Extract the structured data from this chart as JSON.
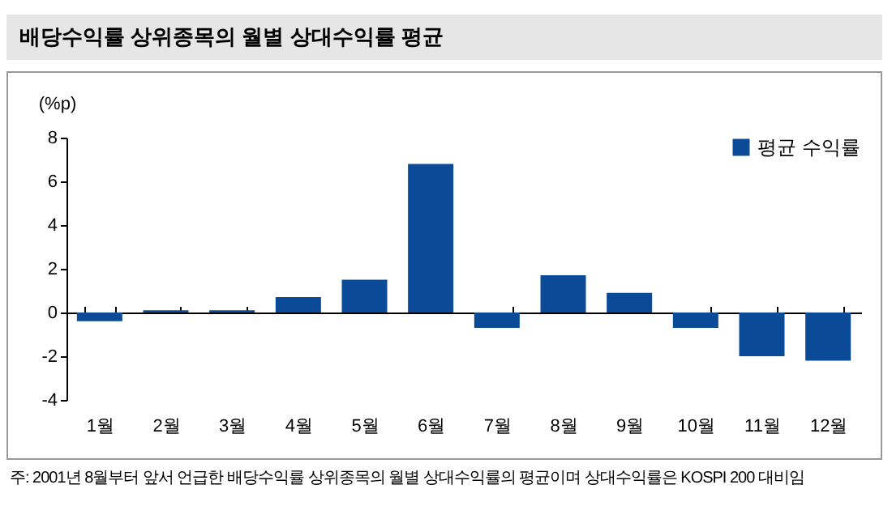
{
  "chart_data": {
    "type": "bar",
    "title": "배당수익률 상위종목의 월별 상대수익률 평균",
    "ylabel": "(%p)",
    "categories": [
      "1월",
      "2월",
      "3월",
      "4월",
      "5월",
      "6월",
      "7월",
      "8월",
      "9월",
      "10월",
      "11월",
      "12월"
    ],
    "series": [
      {
        "name": "평균 수익률",
        "color": "#0a4a96",
        "values": [
          -0.4,
          0.1,
          0.1,
          0.7,
          1.5,
          6.8,
          -0.7,
          1.7,
          0.9,
          -0.7,
          -2.0,
          -2.2
        ]
      }
    ],
    "ylim": [
      -4,
      8
    ],
    "yticks": [
      -4,
      -2,
      0,
      2,
      4,
      6,
      8
    ],
    "legend": "top right",
    "annotations": [
      "주: 2001년 8월부터 앞서 언급한 배당수익률 상위종목의 월별 상대수익률의 평균이며 상대수익률은 KOSPI 200 대비임"
    ]
  }
}
